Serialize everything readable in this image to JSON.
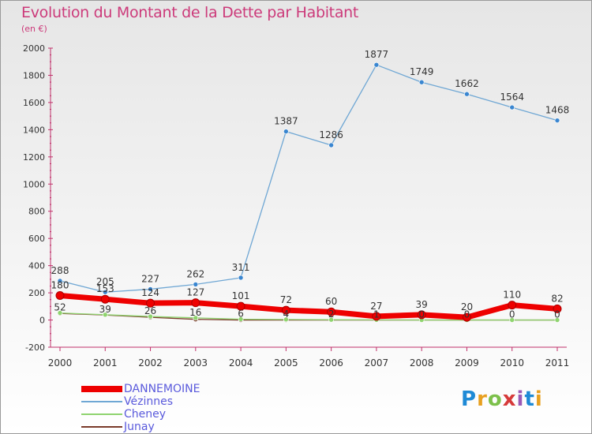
{
  "title": "Evolution du Montant de la Dette par Habitant",
  "subtitle": "(en €)",
  "logo": {
    "text": "Proxiti",
    "colors": [
      "#1e8ad6",
      "#e8a020",
      "#7cc04a",
      "#d63a3a",
      "#9b59b6",
      "#1e8ad6",
      "#e8a020"
    ]
  },
  "chart_data": {
    "type": "line",
    "title": "Evolution du Montant de la Dette par Habitant",
    "subtitle": "(en €)",
    "x": [
      "2000",
      "2001",
      "2002",
      "2003",
      "2004",
      "2005",
      "2006",
      "2007",
      "2008",
      "2009",
      "2010",
      "2011"
    ],
    "ylim": [
      -200,
      2000
    ],
    "yticks": [
      "-200",
      "0",
      "200",
      "400",
      "600",
      "800",
      "1000",
      "1200",
      "1400",
      "1600",
      "1800",
      "2000"
    ],
    "grid": false,
    "legend_position": "bottom-left",
    "series": [
      {
        "name": "Vézinnes",
        "color": "#6fa7d4",
        "values": [
          288,
          205,
          227,
          262,
          311,
          1387,
          1286,
          1877,
          1749,
          1662,
          1564,
          1468
        ],
        "labels": [
          "288",
          "205",
          "227",
          "262",
          "311",
          "1387",
          "1286",
          "1877",
          "1749",
          "1662",
          "1564",
          "1468"
        ]
      },
      {
        "name": "Cheney",
        "color": "#8fd46f",
        "values": [
          52,
          39,
          26,
          16,
          6,
          4,
          2,
          1,
          0,
          0,
          0,
          0
        ],
        "labels": [
          "52",
          "39",
          "26",
          "16",
          "6",
          "4",
          "2",
          "1",
          "0",
          "0",
          "0",
          "0"
        ]
      },
      {
        "name": "Junay",
        "color": "#7a3a2a",
        "values": [
          48,
          37,
          20,
          5,
          0,
          0,
          0,
          0,
          0,
          0,
          0,
          0
        ],
        "labels": [
          "",
          "",
          "",
          "",
          "",
          "",
          "",
          "",
          "",
          "",
          "",
          ""
        ]
      },
      {
        "name": "DANNEMOINE",
        "color": "#ee0000",
        "values": [
          180,
          153,
          124,
          127,
          101,
          72,
          60,
          27,
          39,
          20,
          110,
          82
        ],
        "labels": [
          "180",
          "153",
          "124",
          "127",
          "101",
          "72",
          "60",
          "27",
          "39",
          "20",
          "110",
          "82"
        ]
      }
    ],
    "legend": [
      "DANNEMOINE",
      "Vézinnes",
      "Cheney",
      "Junay"
    ]
  }
}
